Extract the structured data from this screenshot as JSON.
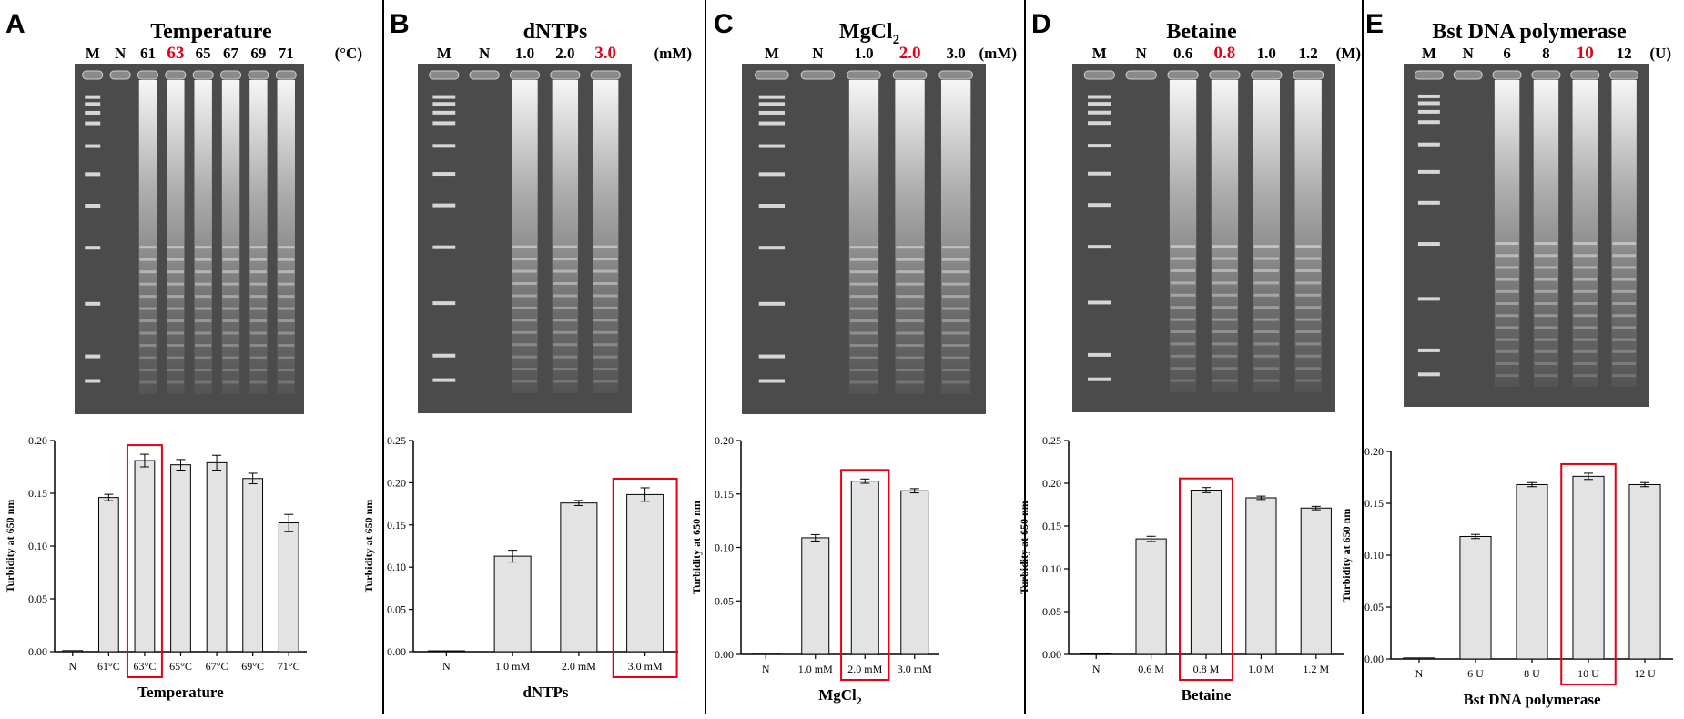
{
  "colors": {
    "bar_fill": "#e3e3e3",
    "bar_stroke": "#000000",
    "highlight": "#e60012",
    "gel_background": "#4b4b4b"
  },
  "chart_data": [
    {
      "type": "bar",
      "panel_letter": "A",
      "title": "Temperature",
      "gel_lanes": [
        "M",
        "N",
        "61",
        "63",
        "65",
        "67",
        "69",
        "71"
      ],
      "gel_unit": "(°C)",
      "highlight_lane": "63",
      "categories": [
        "N",
        "61°C",
        "63°C",
        "65°C",
        "67°C",
        "69°C",
        "71°C"
      ],
      "values": [
        0.001,
        0.146,
        0.181,
        0.177,
        0.179,
        0.164,
        0.122
      ],
      "errors": [
        0,
        0.003,
        0.006,
        0.005,
        0.007,
        0.005,
        0.008
      ],
      "highlight_index": 2,
      "yticks": [
        "0.00",
        "0.05",
        "0.10",
        "0.15",
        "0.20"
      ],
      "ylim": [
        0,
        0.2
      ],
      "xlabel": "Temperature",
      "ylabel": "Turbidity at 650 nm"
    },
    {
      "type": "bar",
      "panel_letter": "B",
      "title": "dNTPs",
      "gel_lanes": [
        "M",
        "N",
        "1.0",
        "2.0",
        "3.0"
      ],
      "gel_unit": "(mM)",
      "highlight_lane": "3.0",
      "categories": [
        "N",
        "1.0 mM",
        "2.0 mM",
        "3.0 mM"
      ],
      "values": [
        0.001,
        0.113,
        0.176,
        0.186
      ],
      "errors": [
        0,
        0.007,
        0.003,
        0.008
      ],
      "highlight_index": 3,
      "yticks": [
        "0.00",
        "0.05",
        "0.10",
        "0.15",
        "0.20",
        "0.25"
      ],
      "ylim": [
        0,
        0.25
      ],
      "xlabel": "dNTPs",
      "ylabel": "Turbidity at 650 nm"
    },
    {
      "type": "bar",
      "panel_letter": "C",
      "title": "MgCl",
      "title_sub": "2",
      "gel_lanes": [
        "M",
        "N",
        "1.0",
        "2.0",
        "3.0"
      ],
      "gel_unit": "(mM)",
      "highlight_lane": "2.0",
      "categories": [
        "N",
        "1.0 mM",
        "2.0 mM",
        "3.0 mM"
      ],
      "values": [
        0.001,
        0.109,
        0.162,
        0.153
      ],
      "errors": [
        0,
        0.003,
        0.002,
        0.002
      ],
      "highlight_index": 2,
      "yticks": [
        "0.00",
        "0.05",
        "0.10",
        "0.15",
        "0.20"
      ],
      "ylim": [
        0,
        0.2
      ],
      "xlabel": "MgCl",
      "xlabel_sub": "2",
      "ylabel": "Turbidity at 650 nm"
    },
    {
      "type": "bar",
      "panel_letter": "D",
      "title": "Betaine",
      "gel_lanes": [
        "M",
        "N",
        "0.6",
        "0.8",
        "1.0",
        "1.2"
      ],
      "gel_unit": "(M)",
      "highlight_lane": "0.8",
      "categories": [
        "N",
        "0.6 M",
        "0.8 M",
        "1.0 M",
        "1.2 M"
      ],
      "values": [
        0.001,
        0.135,
        0.192,
        0.183,
        0.171
      ],
      "errors": [
        0,
        0.003,
        0.003,
        0.002,
        0.002
      ],
      "highlight_index": 2,
      "yticks": [
        "0.00",
        "0.05",
        "0.10",
        "0.15",
        "0.20",
        "0.25"
      ],
      "ylim": [
        0,
        0.25
      ],
      "xlabel": "Betaine",
      "ylabel": "Turbidity at 650 nm"
    },
    {
      "type": "bar",
      "panel_letter": "E",
      "title": "Bst DNA polymerase",
      "gel_lanes": [
        "M",
        "N",
        "6",
        "8",
        "10",
        "12"
      ],
      "gel_unit": "(U)",
      "highlight_lane": "10",
      "categories": [
        "N",
        "6 U",
        "8 U",
        "10 U",
        "12 U"
      ],
      "values": [
        0.001,
        0.118,
        0.168,
        0.176,
        0.168
      ],
      "errors": [
        0,
        0.002,
        0.002,
        0.003,
        0.002
      ],
      "highlight_index": 3,
      "yticks": [
        "0.00",
        "0.05",
        "0.10",
        "0.15",
        "0.20"
      ],
      "ylim": [
        0,
        0.2
      ],
      "xlabel": "Bst DNA polymerase",
      "ylabel": "Turbidity at 650 nm"
    }
  ]
}
